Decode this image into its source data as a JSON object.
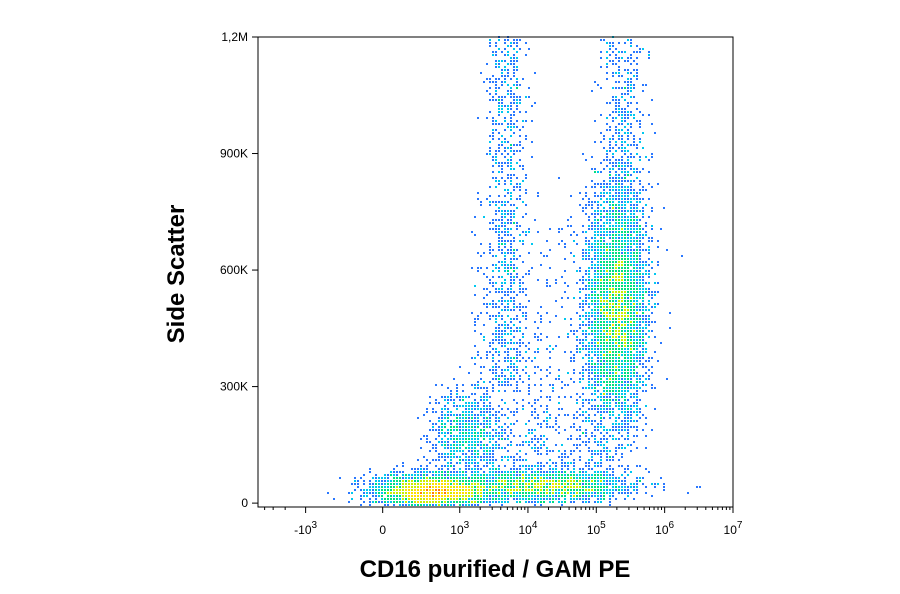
{
  "chart_data": {
    "type": "scatter",
    "subtype": "flow-cytometry-density-dot-plot",
    "xlabel": "CD16 purified / GAM PE",
    "ylabel": "Side Scatter",
    "x_scale": "biexponential",
    "xlim": [
      -5000,
      10000000
    ],
    "ylim": [
      -10000,
      1200000
    ],
    "grid": false,
    "legend": "none",
    "x_ticks": [
      {
        "value": -1000,
        "base": "-10",
        "exp": "3"
      },
      {
        "value": 0,
        "base": "0",
        "exp": ""
      },
      {
        "value": 1000,
        "base": "10",
        "exp": "3"
      },
      {
        "value": 10000,
        "base": "10",
        "exp": "4"
      },
      {
        "value": 100000,
        "base": "10",
        "exp": "5"
      },
      {
        "value": 1000000,
        "base": "10",
        "exp": "6"
      },
      {
        "value": 10000000,
        "base": "10",
        "exp": "7"
      }
    ],
    "y_ticks": [
      {
        "value": 0,
        "label": "0"
      },
      {
        "value": 300000,
        "label": "300K"
      },
      {
        "value": 600000,
        "label": "600K"
      },
      {
        "value": 900000,
        "label": "900K"
      },
      {
        "value": 1200000,
        "label": "1,2M"
      }
    ],
    "populations": [
      {
        "x_center": 400,
        "y_center": 30000,
        "peak_density": "high"
      },
      {
        "x_center": 1200,
        "y_center": 180000,
        "peak_density": "low"
      },
      {
        "x_center": 20000,
        "y_center": 45000,
        "peak_density": "medium"
      },
      {
        "x_center": 200000,
        "y_center": 500000,
        "peak_density": "high"
      }
    ],
    "density_colors": [
      "#1a1ad6",
      "#2a78ff",
      "#00c8f0",
      "#00e080",
      "#c8f000",
      "#ffe000",
      "#ff8000",
      "#e81010"
    ]
  }
}
